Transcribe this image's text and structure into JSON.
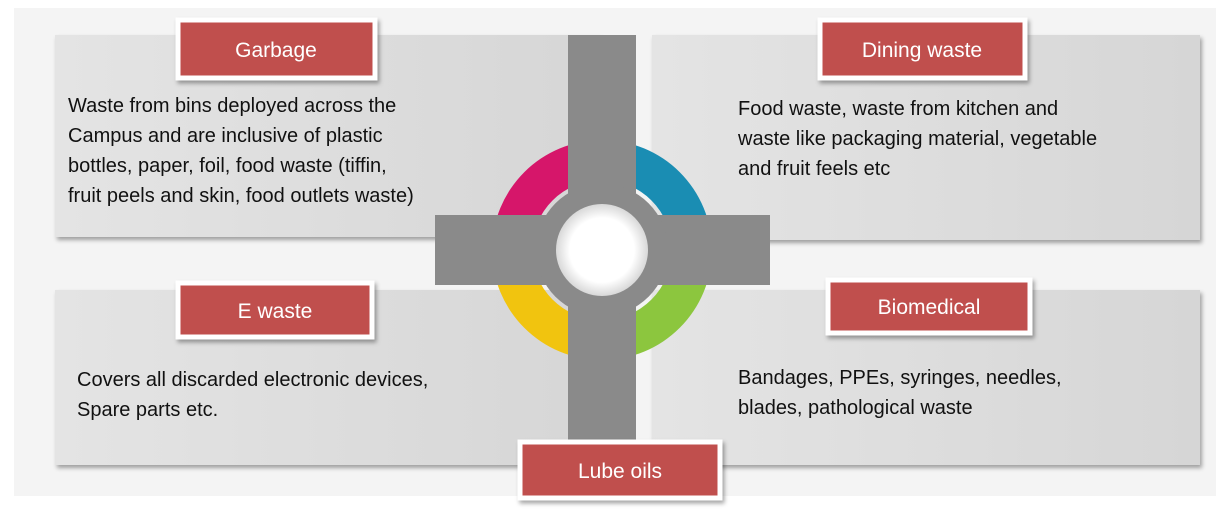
{
  "categories": [
    {
      "label": "Garbage",
      "lines": [
        "Waste from bins deployed across the",
        "Campus and are inclusive of plastic",
        "bottles, paper, foil, food waste (tiffin,",
        "fruit peels and skin, food outlets waste)"
      ]
    },
    {
      "label": "Dining waste",
      "lines": [
        "Food waste, waste from kitchen and",
        "waste like packaging material, vegetable",
        "and fruit feels etc"
      ]
    },
    {
      "label": "E waste",
      "lines": [
        "Covers all discarded electronic devices,",
        "Spare parts etc."
      ]
    },
    {
      "label": "Biomedical",
      "lines": [
        "Bandages, PPEs, syringes, needles,",
        "blades, pathological waste"
      ]
    },
    {
      "label": "Lube oils",
      "lines": []
    }
  ]
}
